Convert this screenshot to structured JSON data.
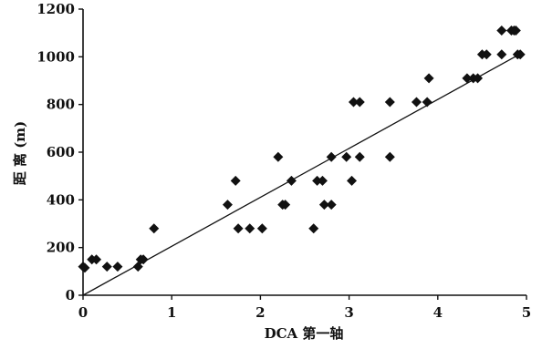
{
  "chart_data": {
    "type": "scatter",
    "title": "",
    "xlabel": "DCA 第一轴",
    "ylabel": "距 离 (m)",
    "xlim": [
      0,
      5
    ],
    "ylim": [
      0,
      1200
    ],
    "xticks": [
      0,
      1,
      2,
      3,
      4,
      5
    ],
    "yticks": [
      0,
      200,
      400,
      600,
      800,
      1000,
      1200
    ],
    "grid": false,
    "legend": "none",
    "marker_color": "#111111",
    "trendline": {
      "x": [
        0,
        4.92
      ],
      "y": [
        0,
        1010
      ]
    },
    "series": [
      {
        "points": [
          [
            0.0,
            120
          ],
          [
            0.02,
            115
          ],
          [
            0.1,
            150
          ],
          [
            0.15,
            150
          ],
          [
            0.27,
            120
          ],
          [
            0.39,
            120
          ],
          [
            0.62,
            120
          ],
          [
            0.65,
            150
          ],
          [
            0.68,
            150
          ],
          [
            0.8,
            280
          ],
          [
            1.63,
            380
          ],
          [
            1.72,
            480
          ],
          [
            1.75,
            280
          ],
          [
            1.88,
            280
          ],
          [
            2.02,
            280
          ],
          [
            2.2,
            580
          ],
          [
            2.25,
            380
          ],
          [
            2.28,
            380
          ],
          [
            2.35,
            480
          ],
          [
            2.6,
            280
          ],
          [
            2.64,
            480
          ],
          [
            2.7,
            480
          ],
          [
            2.72,
            380
          ],
          [
            2.8,
            380
          ],
          [
            2.8,
            580
          ],
          [
            2.97,
            580
          ],
          [
            3.03,
            480
          ],
          [
            3.05,
            810
          ],
          [
            3.12,
            810
          ],
          [
            3.12,
            580
          ],
          [
            3.46,
            810
          ],
          [
            3.46,
            580
          ],
          [
            3.76,
            810
          ],
          [
            3.88,
            810
          ],
          [
            3.9,
            910
          ],
          [
            4.33,
            910
          ],
          [
            4.4,
            910
          ],
          [
            4.45,
            910
          ],
          [
            4.5,
            1010
          ],
          [
            4.55,
            1010
          ],
          [
            4.72,
            1110
          ],
          [
            4.72,
            1010
          ],
          [
            4.83,
            1110
          ],
          [
            4.86,
            1110
          ],
          [
            4.88,
            1110
          ],
          [
            4.9,
            1010
          ],
          [
            4.93,
            1010
          ]
        ]
      }
    ]
  }
}
